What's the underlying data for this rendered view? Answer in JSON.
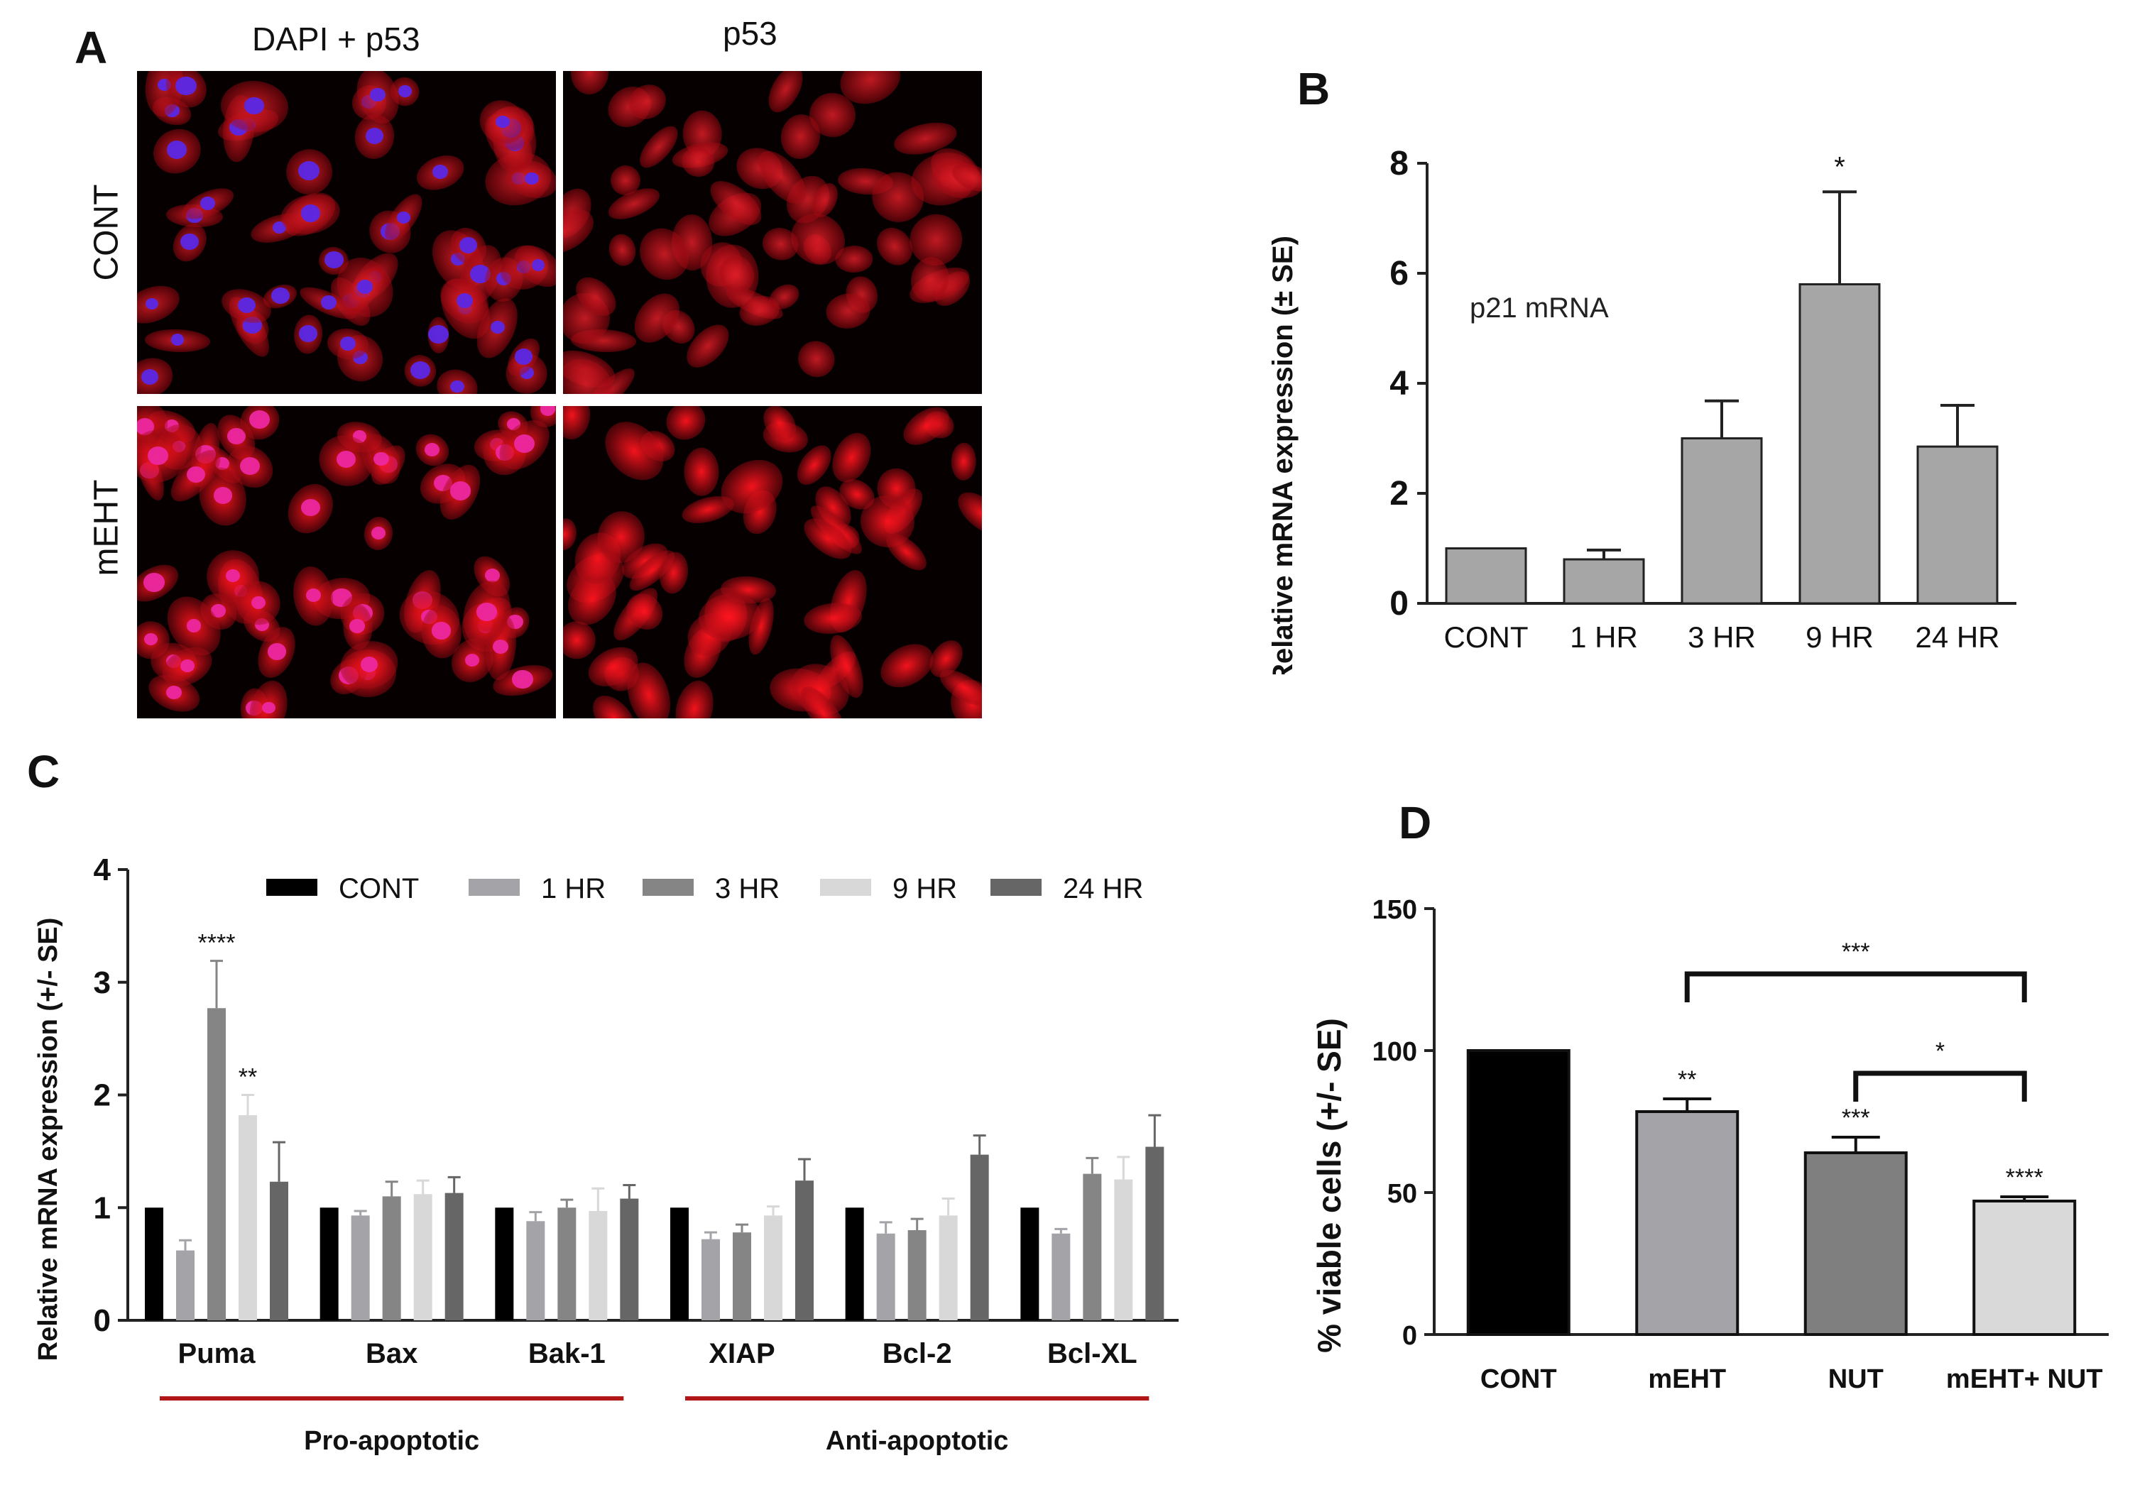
{
  "panels": {
    "A": {
      "letter": "A",
      "col_labels": [
        "DAPI + p53",
        "p53"
      ],
      "row_labels": [
        "CONT",
        "mEHT"
      ]
    },
    "B": {
      "letter": "B"
    },
    "C": {
      "letter": "C"
    },
    "D": {
      "letter": "D"
    }
  },
  "chart_data": [
    {
      "id": "B",
      "type": "bar",
      "categories": [
        "CONT",
        "1 HR",
        "3 HR",
        "9 HR",
        "24 HR"
      ],
      "values": [
        1.0,
        0.8,
        3.0,
        5.8,
        2.85
      ],
      "errors": [
        0,
        0.17,
        0.68,
        1.68,
        0.75
      ],
      "significance": [
        "",
        "",
        "",
        "*",
        ""
      ],
      "annotation": "p21 mRNA",
      "ylabel": "Relative mRNA expression (± SE)",
      "ylim": [
        0,
        8
      ],
      "yticks": [
        0,
        2,
        4,
        6,
        8
      ],
      "bar_color": "#a6a6a6",
      "grid": false
    },
    {
      "id": "C",
      "type": "bar",
      "categories": [
        "Puma",
        "Bax",
        "Bak-1",
        "XIAP",
        "Bcl-2",
        "Bcl-XL"
      ],
      "series": [
        {
          "name": "CONT",
          "color": "#000000",
          "values": [
            1,
            1,
            1,
            1,
            1,
            1
          ],
          "errors": [
            0,
            0,
            0,
            0,
            0,
            0
          ]
        },
        {
          "name": "1 HR",
          "color": "#a3a3a8",
          "values": [
            0.62,
            0.93,
            0.88,
            0.72,
            0.77,
            0.77
          ],
          "errors": [
            0.09,
            0.04,
            0.08,
            0.06,
            0.1,
            0.04
          ]
        },
        {
          "name": "3 HR",
          "color": "#858585",
          "values": [
            2.77,
            1.1,
            1.0,
            0.78,
            0.8,
            1.3
          ],
          "errors": [
            0.42,
            0.13,
            0.07,
            0.07,
            0.1,
            0.14
          ]
        },
        {
          "name": "9 HR",
          "color": "#d8d8d8",
          "values": [
            1.82,
            1.12,
            0.97,
            0.93,
            0.93,
            1.25
          ],
          "errors": [
            0.18,
            0.12,
            0.2,
            0.08,
            0.15,
            0.2
          ]
        },
        {
          "name": "24 HR",
          "color": "#666666",
          "values": [
            1.23,
            1.13,
            1.08,
            1.24,
            1.47,
            1.54
          ],
          "errors": [
            0.35,
            0.14,
            0.12,
            0.19,
            0.17,
            0.28
          ]
        }
      ],
      "significance": [
        {
          "category": "Puma",
          "series": "3 HR",
          "label": "****"
        },
        {
          "category": "Puma",
          "series": "9 HR",
          "label": "**"
        }
      ],
      "groups": [
        {
          "label": "Pro-apoptotic",
          "categories": [
            "Puma",
            "Bax",
            "Bak-1"
          ]
        },
        {
          "label": "Anti-apoptotic",
          "categories": [
            "XIAP",
            "Bcl-2",
            "Bcl-XL"
          ]
        }
      ],
      "ylabel": "Relative mRNA expression (+/- SE)",
      "ylim": [
        0,
        4
      ],
      "yticks": [
        0,
        1,
        2,
        3,
        4
      ],
      "group_line_color": "#b01818",
      "legend": "top",
      "grid": false
    },
    {
      "id": "D",
      "type": "bar",
      "categories": [
        "CONT",
        "mEHT",
        "NUT",
        "mEHT+ NUT"
      ],
      "values": [
        100,
        78.5,
        64,
        47
      ],
      "errors": [
        0,
        4.5,
        5.5,
        1.5
      ],
      "colors": [
        "#000000",
        "#a3a3a8",
        "#7f7f7f",
        "#d9d9d9"
      ],
      "significance": [
        "",
        "**",
        "***",
        "****"
      ],
      "brackets": [
        {
          "from": "mEHT",
          "to": "mEHT+ NUT",
          "label": "***"
        },
        {
          "from": "NUT",
          "to": "mEHT+ NUT",
          "label": "*"
        }
      ],
      "ylabel": "% viable cells (+/- SE)",
      "ylim": [
        0,
        150
      ],
      "yticks": [
        0,
        50,
        100,
        150
      ],
      "grid": false
    }
  ]
}
